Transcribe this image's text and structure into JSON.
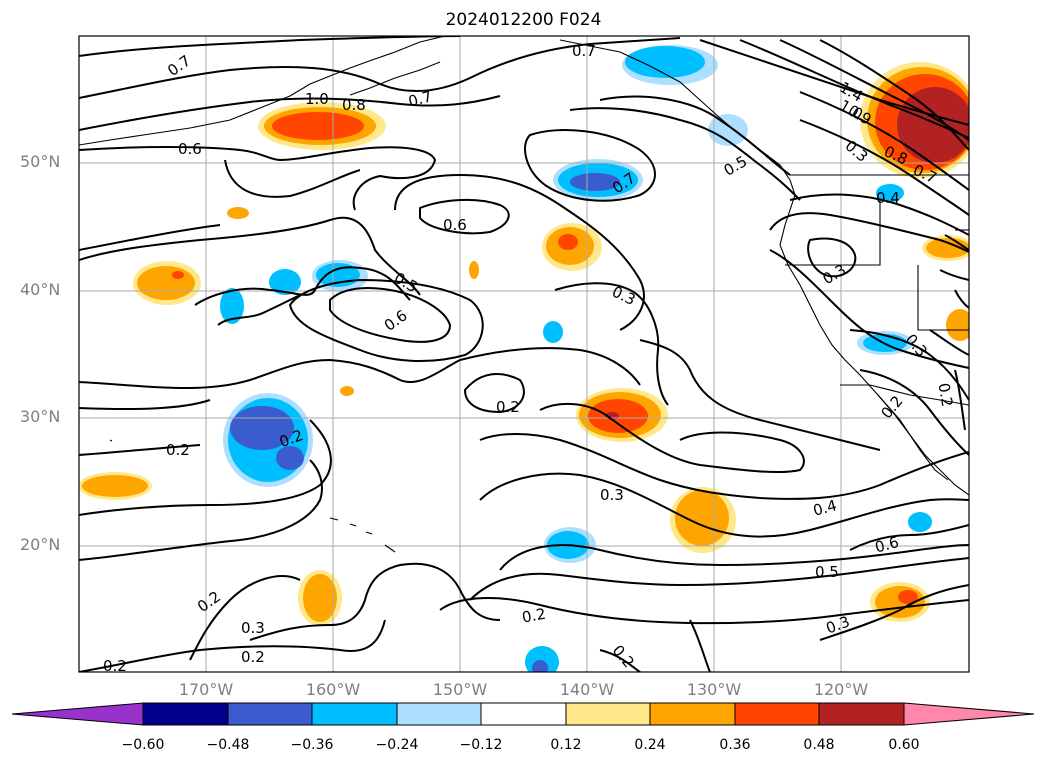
{
  "title": "2024012200 F024",
  "lat_labels": [
    "50°N",
    "40°N",
    "30°N",
    "20°N"
  ],
  "lon_labels": [
    "170°W",
    "160°W",
    "150°W",
    "140°W",
    "130°W",
    "120°W"
  ],
  "colorbar": {
    "ticks": [
      "−0.60",
      "−0.48",
      "−0.36",
      "−0.24",
      "−0.12",
      "0.12",
      "0.24",
      "0.36",
      "0.48",
      "0.60"
    ],
    "colors": [
      "#9932cc",
      "#00008b",
      "#3a5ccc",
      "#00bfff",
      "#addfff",
      "#ffffff",
      "#ffe88a",
      "#ffa500",
      "#ff4500",
      "#b22222",
      "#ff88aa"
    ]
  },
  "contour_labels": [
    "0.7",
    "0.7",
    "0.7",
    "1.0",
    "0.8",
    "0.6",
    "0.6",
    "0.7",
    "0.5",
    "0.5",
    "0.6",
    "0.3",
    "0.2",
    "0.2",
    "0.2",
    "0.3",
    "0.4",
    "0.6",
    "0.5",
    "0.2",
    "0.2",
    "0.3",
    "0.2",
    "0.2",
    "0.2",
    "0.3",
    "0.2",
    "1.4",
    "1.0",
    "0.8",
    "0.3",
    "0.9",
    "0.7",
    "0.4",
    "0.3",
    "0.3",
    "0.2"
  ]
}
